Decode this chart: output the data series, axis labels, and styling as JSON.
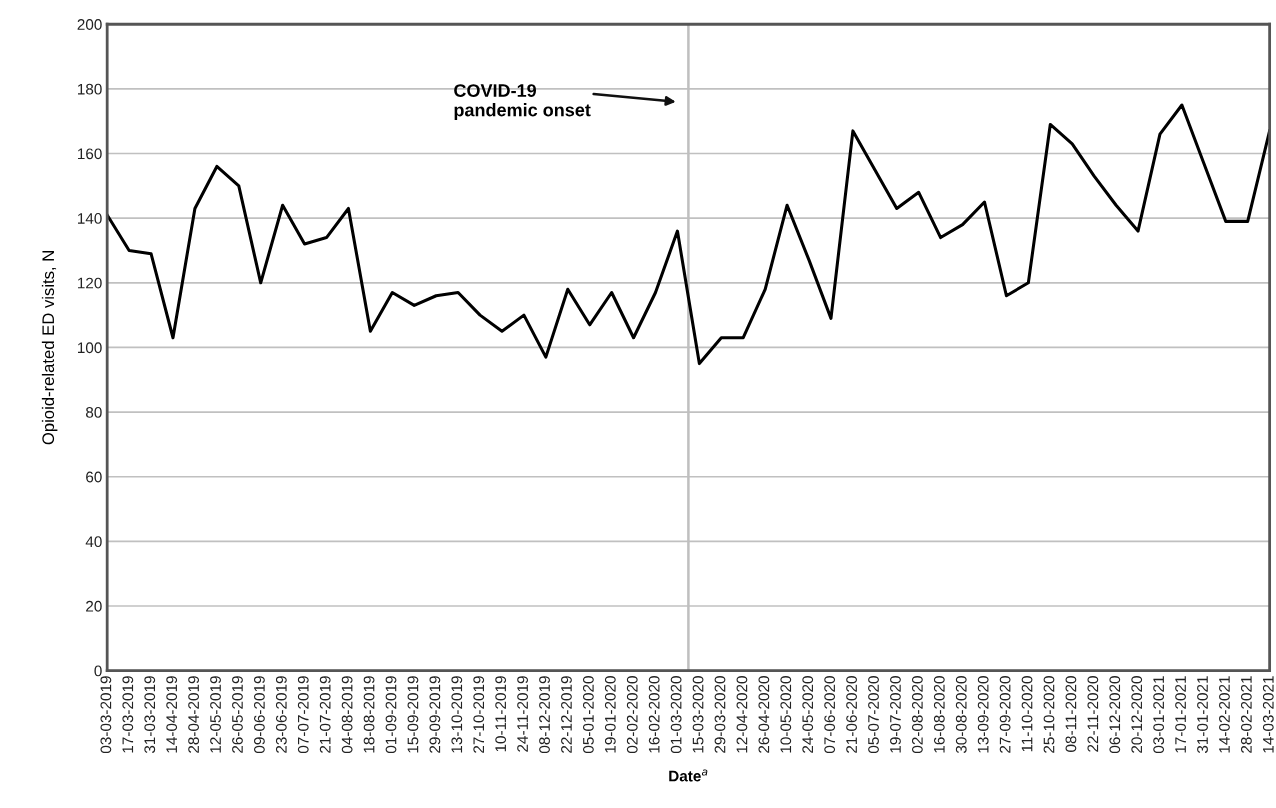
{
  "chart_data": {
    "type": "line",
    "xlabel": "Date$^{a}$",
    "ylabel": "Opioid-related ED visits, N",
    "x": [
      "2019-03-03",
      "2019-03-17",
      "2019-03-31",
      "2019-04-14",
      "2019-04-28",
      "2019-05-12",
      "2019-05-26",
      "2019-06-09",
      "2019-06-23",
      "2019-07-07",
      "2019-07-21",
      "2019-08-04",
      "2019-08-18",
      "2019-09-01",
      "2019-09-15",
      "2019-09-29",
      "2019-10-13",
      "2019-10-27",
      "2019-11-10",
      "2019-11-24",
      "2019-12-08",
      "2019-12-22",
      "2020-01-05",
      "2020-01-19",
      "2020-02-02",
      "2020-02-16",
      "2020-03-01",
      "2020-03-15",
      "2020-03-29",
      "2020-04-12",
      "2020-04-26",
      "2020-05-10",
      "2020-05-24",
      "2020-06-07",
      "2020-06-21",
      "2020-07-05",
      "2020-07-19",
      "2020-08-02",
      "2020-08-16",
      "2020-08-30",
      "2020-09-13",
      "2020-09-27",
      "2020-10-11",
      "2020-10-25",
      "2020-11-08",
      "2020-11-22",
      "2020-12-06",
      "2020-12-20",
      "2021-01-03",
      "2021-01-17",
      "2021-01-31",
      "2021-02-14",
      "2021-02-28",
      "2021-03-14"
    ],
    "series": [
      {
        "color": "#000000",
        "values": [
          141,
          130,
          129,
          103,
          143,
          156,
          150,
          120,
          144,
          132,
          134,
          143,
          105,
          117,
          113,
          116,
          117,
          110,
          105,
          110,
          97,
          118,
          107,
          117,
          103,
          117,
          136,
          95,
          103,
          103,
          118,
          144,
          127,
          109,
          167,
          155,
          143,
          148,
          134,
          138,
          145,
          116,
          120,
          169,
          163,
          153,
          144,
          136,
          166,
          175,
          157,
          139,
          139,
          167
        ]
      }
    ],
    "xlim": [
      "2019-03-03",
      "2021-03-14"
    ],
    "xticks": [
      {
        "value": "2019-03-03",
        "label": "03-03-2019"
      },
      {
        "value": "2019-03-17",
        "label": "17-03-2019"
      },
      {
        "value": "2019-03-31",
        "label": "31-03-2019"
      },
      {
        "value": "2019-04-14",
        "label": "14-04-2019"
      },
      {
        "value": "2019-04-28",
        "label": "28-04-2019"
      },
      {
        "value": "2019-05-12",
        "label": "12-05-2019"
      },
      {
        "value": "2019-05-26",
        "label": "26-05-2019"
      },
      {
        "value": "2019-06-09",
        "label": "09-06-2019"
      },
      {
        "value": "2019-06-23",
        "label": "23-06-2019"
      },
      {
        "value": "2019-07-07",
        "label": "07-07-2019"
      },
      {
        "value": "2019-07-21",
        "label": "21-07-2019"
      },
      {
        "value": "2019-08-04",
        "label": "04-08-2019"
      },
      {
        "value": "2019-08-18",
        "label": "18-08-2019"
      },
      {
        "value": "2019-09-01",
        "label": "01-09-2019"
      },
      {
        "value": "2019-09-15",
        "label": "15-09-2019"
      },
      {
        "value": "2019-09-29",
        "label": "29-09-2019"
      },
      {
        "value": "2019-10-13",
        "label": "13-10-2019"
      },
      {
        "value": "2019-10-27",
        "label": "27-10-2019"
      },
      {
        "value": "2019-11-10",
        "label": "10-11-2019"
      },
      {
        "value": "2019-11-24",
        "label": "24-11-2019"
      },
      {
        "value": "2019-12-08",
        "label": "08-12-2019"
      },
      {
        "value": "2019-12-22",
        "label": "22-12-2019"
      },
      {
        "value": "2020-01-05",
        "label": "05-01-2020"
      },
      {
        "value": "2020-01-19",
        "label": "19-01-2020"
      },
      {
        "value": "2020-02-02",
        "label": "02-02-2020"
      },
      {
        "value": "2020-02-16",
        "label": "16-02-2020"
      },
      {
        "value": "2020-03-01",
        "label": "01-03-2020"
      },
      {
        "value": "2020-03-15",
        "label": "15-03-2020"
      },
      {
        "value": "2020-03-29",
        "label": "29-03-2020"
      },
      {
        "value": "2020-04-12",
        "label": "12-04-2020"
      },
      {
        "value": "2020-04-26",
        "label": "26-04-2020"
      },
      {
        "value": "2020-05-10",
        "label": "10-05-2020"
      },
      {
        "value": "2020-05-24",
        "label": "24-05-2020"
      },
      {
        "value": "2020-06-07",
        "label": "07-06-2020"
      },
      {
        "value": "2020-06-21",
        "label": "21-06-2020"
      },
      {
        "value": "2020-07-05",
        "label": "05-07-2020"
      },
      {
        "value": "2020-07-19",
        "label": "19-07-2020"
      },
      {
        "value": "2020-08-02",
        "label": "02-08-2020"
      },
      {
        "value": "2020-08-16",
        "label": "16-08-2020"
      },
      {
        "value": "2020-08-30",
        "label": "30-08-2020"
      },
      {
        "value": "2020-09-13",
        "label": "13-09-2020"
      },
      {
        "value": "2020-09-27",
        "label": "27-09-2020"
      },
      {
        "value": "2020-10-11",
        "label": "11-10-2020"
      },
      {
        "value": "2020-10-25",
        "label": "25-10-2020"
      },
      {
        "value": "2020-11-08",
        "label": "08-11-2020"
      },
      {
        "value": "2020-11-22",
        "label": "22-11-2020"
      },
      {
        "value": "2020-12-06",
        "label": "06-12-2020"
      },
      {
        "value": "2020-12-20",
        "label": "20-12-2020"
      },
      {
        "value": "2021-01-03",
        "label": "03-01-2021"
      },
      {
        "value": "2021-01-17",
        "label": "17-01-2021"
      },
      {
        "value": "2021-01-31",
        "label": "31-01-2021"
      },
      {
        "value": "2021-02-14",
        "label": "14-02-2021"
      },
      {
        "value": "2021-02-28",
        "label": "28-02-2021"
      },
      {
        "value": "2021-03-14",
        "label": "14-03-2021"
      }
    ],
    "ylim": [
      0,
      200
    ],
    "yticks": [
      0,
      20,
      40,
      60,
      80,
      100,
      120,
      140,
      160,
      180,
      200
    ],
    "grid": "y",
    "marker": "none",
    "line_style": "solid",
    "annotations": [
      "COVID-19\npandemic onset"
    ],
    "ref_lines": [
      {
        "axis": "x",
        "value": "2020-03-08",
        "color": "#bfbfbf"
      }
    ]
  }
}
